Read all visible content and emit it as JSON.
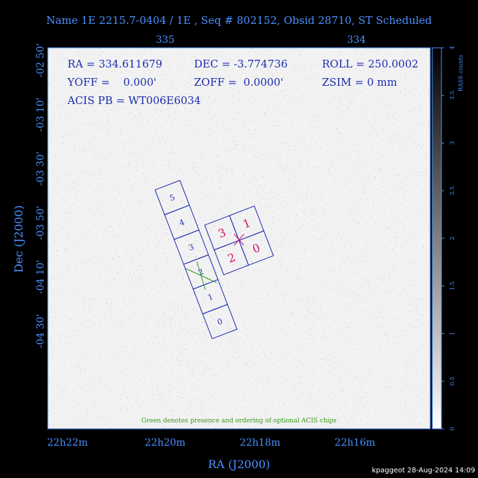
{
  "header": {
    "title": "Name 1E 2215.7-0404 / 1E , Seq # 802152, Obsid 28710, ST Scheduled"
  },
  "axes": {
    "top_ticks": [
      "335",
      "334"
    ],
    "left_ticks": [
      "-02 50'",
      "-03 10'",
      "-03 30'",
      "-03 50'",
      "-04 10'",
      "-04 30'"
    ],
    "bottom_ticks": [
      "22h22m",
      "22h20m",
      "22h18m",
      "22h16m"
    ],
    "x_label": "RA (J2000)",
    "y_label": "Dec (J2000)"
  },
  "info": {
    "ra": "RA = 334.611679",
    "dec": "DEC = -3.774736",
    "roll": "ROLL = 250.0002",
    "yoff": "YOFF =    0.000'",
    "zoff": "ZOFF =  0.0000'",
    "zsim": "ZSIM = 0 mm",
    "acis": "ACIS PB = WT006E6034"
  },
  "s_chips": [
    "5",
    "4",
    "3",
    "2",
    "1",
    "0"
  ],
  "i_chips": [
    "3",
    "1",
    "2",
    "0"
  ],
  "note": "Green denotes presence and ordering of optional ACIS chips",
  "colorbar": {
    "label": "RASS counts",
    "ticks": [
      "0",
      "0.5",
      "1",
      "1.5",
      "2",
      "2.5",
      "3",
      "3.5",
      "4"
    ]
  },
  "footer": "kpaggeot 28-Aug-2024 14:09"
}
